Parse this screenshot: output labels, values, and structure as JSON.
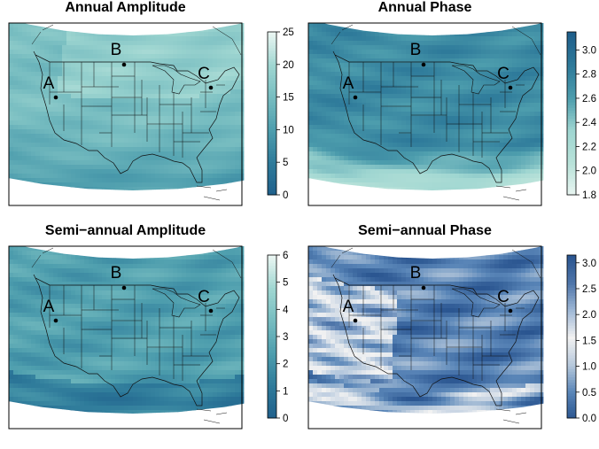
{
  "panels": [
    {
      "title": "Annual Amplitude",
      "palette": "teal-light",
      "scale": {
        "min": 0,
        "max": 25,
        "ticks": [
          "0",
          "5",
          "10",
          "15",
          "20",
          "25"
        ]
      },
      "field": "annual_amplitude"
    },
    {
      "title": "Annual Phase",
      "palette": "teal-dark",
      "scale": {
        "min": 1.8,
        "max": 3.15,
        "ticks": [
          "1.8",
          "2.0",
          "2.2",
          "2.4",
          "2.6",
          "2.8",
          "3.0"
        ]
      },
      "field": "annual_phase"
    },
    {
      "title": "Semi−annual Amplitude",
      "palette": "teal-light",
      "scale": {
        "min": 0,
        "max": 6,
        "ticks": [
          "0",
          "1",
          "2",
          "3",
          "4",
          "5",
          "6"
        ]
      },
      "field": "semiannual_amplitude"
    },
    {
      "title": "Semi−annual Phase",
      "palette": "blue-diverging",
      "scale": {
        "min": 0,
        "max": 3.15,
        "ticks": [
          "0.0",
          "0.5",
          "1.0",
          "1.5",
          "2.0",
          "2.5",
          "3.0"
        ]
      },
      "field": "semiannual_phase"
    }
  ],
  "sites": [
    {
      "label": "A"
    },
    {
      "label": "B"
    },
    {
      "label": "C"
    }
  ],
  "colors": {
    "teal_dark": "#1f5f8b",
    "teal_mid": "#4d9dad",
    "teal_light": "#9fd6d1",
    "teal_pale": "#eaf6f2",
    "blue_deep": "#2a5590",
    "blue_white": "#f2f2f2"
  }
}
